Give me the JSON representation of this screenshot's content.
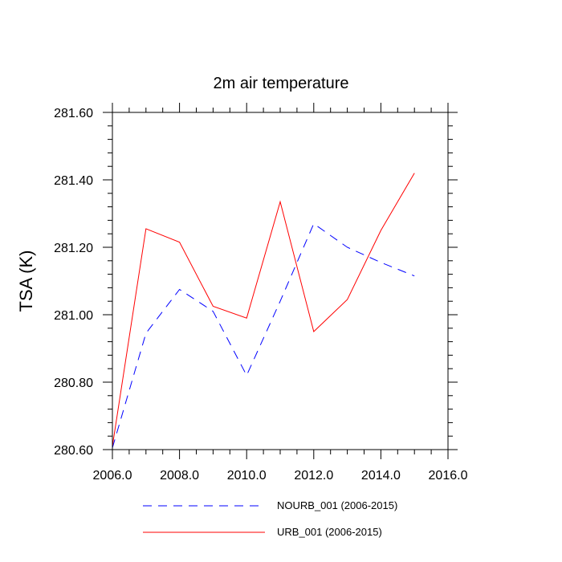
{
  "chart_data": {
    "type": "line",
    "title": "2m air temperature",
    "xlabel": "",
    "ylabel": "TSA  (K)",
    "xlim": [
      2006.0,
      2016.0
    ],
    "ylim": [
      280.6,
      281.6
    ],
    "x_ticks": [
      2006.0,
      2008.0,
      2010.0,
      2012.0,
      2014.0,
      2016.0
    ],
    "x_tick_labels": [
      "2006.0",
      "2008.0",
      "2010.0",
      "2012.0",
      "2014.0",
      "2016.0"
    ],
    "y_ticks": [
      280.6,
      280.8,
      281.0,
      281.2,
      281.4,
      281.6
    ],
    "y_tick_labels": [
      "280.60",
      "280.80",
      "281.00",
      "281.20",
      "281.40",
      "281.60"
    ],
    "grid": false,
    "legend_position": "bottom",
    "series": [
      {
        "name": "NOURB_001 (2006-2015)",
        "color": "#0000ff",
        "style": "dashed",
        "x": [
          2006,
          2007,
          2008,
          2009,
          2010,
          2011,
          2012,
          2013,
          2014,
          2015
        ],
        "values": [
          280.605,
          280.945,
          281.075,
          281.01,
          280.82,
          281.04,
          281.27,
          281.2,
          281.155,
          281.115
        ]
      },
      {
        "name": "URB_001 (2006-2015)",
        "color": "#ff0000",
        "style": "solid",
        "x": [
          2006,
          2007,
          2008,
          2009,
          2010,
          2011,
          2012,
          2013,
          2014,
          2015
        ],
        "values": [
          280.61,
          281.255,
          281.215,
          281.025,
          280.99,
          281.335,
          280.95,
          281.045,
          281.25,
          281.42
        ]
      }
    ]
  }
}
